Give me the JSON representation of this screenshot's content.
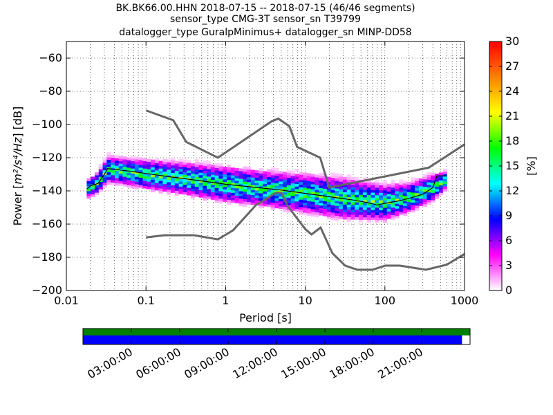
{
  "chart_data": {
    "type": "heatmap",
    "title_lines": [
      "BK.BK66.00.HHN   2018-07-15 -- 2018-07-15  (46/46 segments)",
      "sensor_type CMG-3T sensor_sn T39799",
      "datalogger_type GuralpMinimus+ datalogger_sn MINP-DD58"
    ],
    "xlabel": "Period [s]",
    "ylabel_prefix": "Power [",
    "ylabel_math": "m²/s⁴/Hz",
    "ylabel_suffix": "] [dB]",
    "x_scale": "log",
    "xlim": [
      0.01,
      1000
    ],
    "ylim": [
      -200,
      -50
    ],
    "x_ticks": [
      {
        "value": 0.01,
        "label": "0.01"
      },
      {
        "value": 0.1,
        "label": "0.1"
      },
      {
        "value": 1,
        "label": "1"
      },
      {
        "value": 10,
        "label": "10"
      },
      {
        "value": 100,
        "label": "100"
      },
      {
        "value": 1000,
        "label": "1000"
      }
    ],
    "y_ticks": [
      {
        "value": -60,
        "label": "−60"
      },
      {
        "value": -80,
        "label": "−80"
      },
      {
        "value": -100,
        "label": "−100"
      },
      {
        "value": -120,
        "label": "−120"
      },
      {
        "value": -140,
        "label": "−140"
      },
      {
        "value": -160,
        "label": "−160"
      },
      {
        "value": -180,
        "label": "−180"
      },
      {
        "value": -200,
        "label": "−200"
      }
    ],
    "grid": true,
    "colorbar": {
      "label": "[%]",
      "range": [
        0,
        30
      ],
      "ticks": [
        {
          "value": 0,
          "label": "0"
        },
        {
          "value": 3,
          "label": "3"
        },
        {
          "value": 6,
          "label": "6"
        },
        {
          "value": 9,
          "label": "9"
        },
        {
          "value": 12,
          "label": "12"
        },
        {
          "value": 15,
          "label": "15"
        },
        {
          "value": 18,
          "label": "18"
        },
        {
          "value": 21,
          "label": "21"
        },
        {
          "value": 24,
          "label": "24"
        },
        {
          "value": 27,
          "label": "27"
        },
        {
          "value": 30,
          "label": "30"
        }
      ],
      "colors": [
        "#ffffff",
        "#ff00ff",
        "#0000ff",
        "#00ffff",
        "#00ff00",
        "#ffff00",
        "#ff8000",
        "#ff0000"
      ]
    },
    "noise_model_high": [
      [
        0.1,
        -91.5
      ],
      [
        0.22,
        -97.4
      ],
      [
        0.32,
        -110.5
      ],
      [
        0.8,
        -120
      ],
      [
        3.8,
        -98
      ],
      [
        4.6,
        -96.5
      ],
      [
        6.3,
        -101
      ],
      [
        7.9,
        -113.5
      ],
      [
        15.4,
        -120
      ],
      [
        20,
        -138
      ],
      [
        354.8,
        -126
      ],
      [
        1000,
        -112
      ]
    ],
    "noise_model_low": [
      [
        0.1,
        -168
      ],
      [
        0.17,
        -166.7
      ],
      [
        0.4,
        -166.7
      ],
      [
        0.8,
        -169.2
      ],
      [
        1.24,
        -163.7
      ],
      [
        2.4,
        -148.6
      ],
      [
        4.3,
        -141.1
      ],
      [
        5,
        -141.1
      ],
      [
        6,
        -149
      ],
      [
        10,
        -163
      ],
      [
        12,
        -166.2
      ],
      [
        15.6,
        -162.1
      ],
      [
        21.9,
        -177.5
      ],
      [
        31.6,
        -185
      ],
      [
        45,
        -187.5
      ],
      [
        70,
        -187.5
      ],
      [
        101,
        -185
      ],
      [
        154,
        -185
      ],
      [
        328,
        -187.5
      ],
      [
        600,
        -184.4
      ],
      [
        1000,
        -178
      ]
    ],
    "mode_curve": [
      [
        0.018,
        -139
      ],
      [
        0.02,
        -137
      ],
      [
        0.025,
        -135.5
      ],
      [
        0.03,
        -130
      ],
      [
        0.033,
        -126.5
      ],
      [
        0.04,
        -127
      ],
      [
        0.06,
        -128
      ],
      [
        0.1,
        -129.5
      ],
      [
        0.2,
        -131.5
      ],
      [
        0.5,
        -134
      ],
      [
        1,
        -136
      ],
      [
        2,
        -137.5
      ],
      [
        5,
        -139.5
      ],
      [
        10,
        -141.5
      ],
      [
        20,
        -143.5
      ],
      [
        40,
        -145.5
      ],
      [
        60,
        -147
      ],
      [
        80,
        -148.5
      ],
      [
        100,
        -147.5
      ],
      [
        150,
        -146
      ],
      [
        200,
        -144.5
      ],
      [
        300,
        -142
      ],
      [
        400,
        -138
      ],
      [
        450,
        -131
      ],
      [
        600,
        -131
      ]
    ],
    "psd_band": [
      {
        "x": 0.018,
        "center": -139,
        "spread": 6
      },
      {
        "x": 0.025,
        "center": -135,
        "spread": 7
      },
      {
        "x": 0.033,
        "center": -127,
        "spread": 9
      },
      {
        "x": 0.05,
        "center": -128,
        "spread": 9
      },
      {
        "x": 0.1,
        "center": -130,
        "spread": 10
      },
      {
        "x": 0.3,
        "center": -132.5,
        "spread": 11
      },
      {
        "x": 1,
        "center": -136,
        "spread": 12
      },
      {
        "x": 3,
        "center": -138.5,
        "spread": 12
      },
      {
        "x": 10,
        "center": -141.5,
        "spread": 13
      },
      {
        "x": 30,
        "center": -144.5,
        "spread": 14
      },
      {
        "x": 100,
        "center": -147,
        "spread": 12
      },
      {
        "x": 200,
        "center": -144,
        "spread": 10
      },
      {
        "x": 400,
        "center": -138,
        "spread": 9
      },
      {
        "x": 600,
        "center": -133,
        "spread": 6
      }
    ],
    "timeline": {
      "tick_labels": [
        "03:00:00",
        "06:00:00",
        "09:00:00",
        "12:00:00",
        "15:00:00",
        "18:00:00",
        "21:00:00"
      ],
      "tick_hours": [
        3,
        6,
        9,
        12,
        15,
        18,
        21
      ],
      "span_hours": 24,
      "top_bar": {
        "color": "#008000",
        "end_hour": 24
      },
      "bottom_bar": {
        "color": "#0000ff",
        "end_hour": 23.5
      }
    }
  }
}
